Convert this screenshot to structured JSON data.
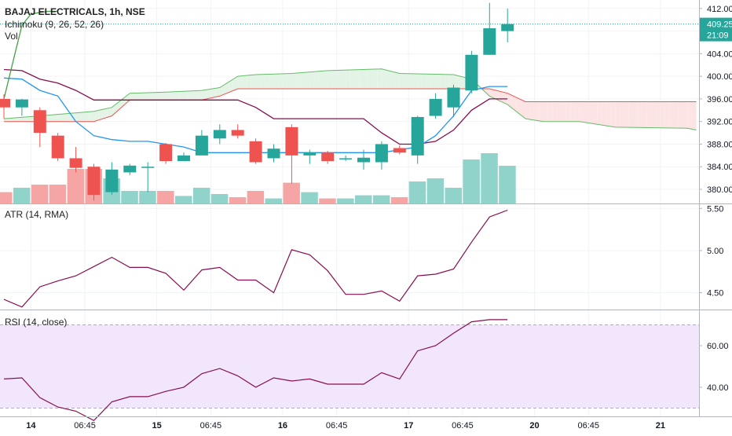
{
  "header": {
    "symbol_title": "BAJAJ ELECTRICALS, 1h, NSE",
    "ichimoku_label": "Ichimoku (9, 26, 52, 26)",
    "vol_label": "Vol",
    "atr_label": "ATR (14, RMA)",
    "rsi_label": "RSI (14, close)"
  },
  "price_badge": {
    "price": "409.25",
    "countdown": "21:09",
    "color": "#26a69a"
  },
  "colors": {
    "up": "#26a69a",
    "down": "#ef5350",
    "up_vol": "#8fd3cb",
    "down_vol": "#f5a6a4",
    "tenkan": "#2196f3",
    "kijun": "#880e4f",
    "lagging": "#43a047",
    "span_a": "#66bb6a",
    "span_b": "#ef5350",
    "cloud_up": "#e3f4e6",
    "cloud_down": "#fde4e4",
    "atr": "#880e4f",
    "rsi": "#880e4f",
    "rsi_band": "#f2e6fd",
    "rsi_band_line": "#9c27b0"
  },
  "x_axis": {
    "ticks": [
      {
        "i": 1.5,
        "label": "14"
      },
      {
        "i": 4.5,
        "label": "06:45"
      },
      {
        "i": 8.5,
        "label": "15"
      },
      {
        "i": 11.5,
        "label": "06:45"
      },
      {
        "i": 15.5,
        "label": "16"
      },
      {
        "i": 18.5,
        "label": "06:45"
      },
      {
        "i": 22.5,
        "label": "17"
      },
      {
        "i": 25.5,
        "label": "06:45"
      },
      {
        "i": 29.5,
        "label": "20"
      },
      {
        "i": 32.5,
        "label": "06:45"
      },
      {
        "i": 36.5,
        "label": "21"
      }
    ]
  },
  "chart_data": [
    {
      "type": "candlestick",
      "title": "BAJAJ ELECTRICALS, 1h, NSE",
      "ylim": [
        377.5,
        413.5
      ],
      "y_ticks": [
        412,
        408,
        404,
        400,
        396,
        392,
        388,
        384,
        380
      ],
      "price_line": 409.25,
      "candles": [
        {
          "o": 396.0,
          "h": 396.8,
          "l": 392.5,
          "c": 394.5
        },
        {
          "o": 394.5,
          "h": 396.0,
          "l": 393.0,
          "c": 395.9
        },
        {
          "o": 394.0,
          "h": 394.5,
          "l": 387.5,
          "c": 390.0
        },
        {
          "o": 389.5,
          "h": 390.0,
          "l": 385.0,
          "c": 385.5
        },
        {
          "o": 385.5,
          "h": 387.5,
          "l": 383.0,
          "c": 383.8
        },
        {
          "o": 384.0,
          "h": 384.5,
          "l": 378.0,
          "c": 379.0
        },
        {
          "o": 379.5,
          "h": 384.8,
          "l": 379.0,
          "c": 383.5
        },
        {
          "o": 383.0,
          "h": 384.5,
          "l": 382.5,
          "c": 384.2
        },
        {
          "o": 384.0,
          "h": 384.8,
          "l": 379.5,
          "c": 384.0
        },
        {
          "o": 388.0,
          "h": 388.2,
          "l": 384.5,
          "c": 385.0
        },
        {
          "o": 385.0,
          "h": 386.5,
          "l": 385.0,
          "c": 386.0
        },
        {
          "o": 386.0,
          "h": 390.5,
          "l": 386.0,
          "c": 389.5
        },
        {
          "o": 389.0,
          "h": 391.5,
          "l": 388.0,
          "c": 390.5
        },
        {
          "o": 390.5,
          "h": 391.5,
          "l": 389.0,
          "c": 389.5
        },
        {
          "o": 388.5,
          "h": 389.0,
          "l": 384.5,
          "c": 384.8
        },
        {
          "o": 385.5,
          "h": 388.0,
          "l": 384.8,
          "c": 387.2
        },
        {
          "o": 391.0,
          "h": 391.5,
          "l": 381.0,
          "c": 386.0
        },
        {
          "o": 386.0,
          "h": 387.0,
          "l": 384.5,
          "c": 386.5
        },
        {
          "o": 386.5,
          "h": 386.8,
          "l": 384.5,
          "c": 385.0
        },
        {
          "o": 385.5,
          "h": 386.0,
          "l": 385.0,
          "c": 385.5
        },
        {
          "o": 384.8,
          "h": 387.0,
          "l": 383.5,
          "c": 385.6
        },
        {
          "o": 384.8,
          "h": 388.5,
          "l": 383.5,
          "c": 388.0
        },
        {
          "o": 387.3,
          "h": 387.8,
          "l": 386.2,
          "c": 386.5
        },
        {
          "o": 386.0,
          "h": 393.0,
          "l": 384.5,
          "c": 392.8
        },
        {
          "o": 393.0,
          "h": 397.0,
          "l": 392.5,
          "c": 396.0
        },
        {
          "o": 394.5,
          "h": 398.5,
          "l": 392.8,
          "c": 398.0
        },
        {
          "o": 397.5,
          "h": 404.5,
          "l": 397.0,
          "c": 403.8
        },
        {
          "o": 403.8,
          "h": 413.0,
          "l": 403.8,
          "c": 408.5
        },
        {
          "o": 408.0,
          "h": 412.0,
          "l": 406.0,
          "c": 409.25
        }
      ],
      "volume_ratios": [
        0.18,
        0.25,
        0.3,
        0.3,
        0.55,
        0.55,
        0.4,
        0.2,
        0.2,
        0.2,
        0.12,
        0.25,
        0.15,
        0.1,
        0.2,
        0.08,
        0.33,
        0.18,
        0.08,
        0.08,
        0.13,
        0.13,
        0.1,
        0.35,
        0.4,
        0.25,
        0.7,
        0.8,
        0.6
      ],
      "series": [
        {
          "key": "tenkan",
          "values": [
            {
              "i": 0,
              "v": 399.7
            },
            {
              "i": 1,
              "v": 399.5
            },
            {
              "i": 2,
              "v": 397.5
            },
            {
              "i": 3,
              "v": 396.5
            },
            {
              "i": 4,
              "v": 392.0
            },
            {
              "i": 5,
              "v": 389.5
            },
            {
              "i": 6,
              "v": 388.8
            },
            {
              "i": 7,
              "v": 388.5
            },
            {
              "i": 8,
              "v": 388.5
            },
            {
              "i": 9,
              "v": 388.0
            },
            {
              "i": 10,
              "v": 387.5
            },
            {
              "i": 11,
              "v": 386.5
            },
            {
              "i": 12,
              "v": 386.5
            },
            {
              "i": 13,
              "v": 386.5
            },
            {
              "i": 14,
              "v": 386.5
            },
            {
              "i": 15,
              "v": 386.5
            },
            {
              "i": 16,
              "v": 386.5
            },
            {
              "i": 17,
              "v": 386.5
            },
            {
              "i": 18,
              "v": 386.5
            },
            {
              "i": 19,
              "v": 386.5
            },
            {
              "i": 20,
              "v": 386.5
            },
            {
              "i": 21,
              "v": 386.5
            },
            {
              "i": 22,
              "v": 387.0
            },
            {
              "i": 23,
              "v": 387.5
            },
            {
              "i": 24,
              "v": 389.5
            },
            {
              "i": 25,
              "v": 393.0
            },
            {
              "i": 26,
              "v": 397.5
            },
            {
              "i": 27,
              "v": 398.2
            },
            {
              "i": 28,
              "v": 398.2
            }
          ]
        },
        {
          "key": "kijun",
          "values": [
            {
              "i": 0,
              "v": 401.2
            },
            {
              "i": 1,
              "v": 401.0
            },
            {
              "i": 2,
              "v": 399.5
            },
            {
              "i": 3,
              "v": 398.8
            },
            {
              "i": 4,
              "v": 397.5
            },
            {
              "i": 5,
              "v": 395.8
            },
            {
              "i": 6,
              "v": 395.8
            },
            {
              "i": 7,
              "v": 395.8
            },
            {
              "i": 8,
              "v": 395.8
            },
            {
              "i": 9,
              "v": 395.8
            },
            {
              "i": 10,
              "v": 395.8
            },
            {
              "i": 11,
              "v": 395.8
            },
            {
              "i": 12,
              "v": 395.8
            },
            {
              "i": 13,
              "v": 395.8
            },
            {
              "i": 14,
              "v": 394.5
            },
            {
              "i": 15,
              "v": 392.5
            },
            {
              "i": 16,
              "v": 392.5
            },
            {
              "i": 17,
              "v": 392.5
            },
            {
              "i": 18,
              "v": 392.5
            },
            {
              "i": 19,
              "v": 392.5
            },
            {
              "i": 20,
              "v": 392.5
            },
            {
              "i": 21,
              "v": 390.0
            },
            {
              "i": 22,
              "v": 388.0
            },
            {
              "i": 23,
              "v": 388.0
            },
            {
              "i": 24,
              "v": 388.5
            },
            {
              "i": 25,
              "v": 390.5
            },
            {
              "i": 26,
              "v": 394.0
            },
            {
              "i": 27,
              "v": 396.0
            },
            {
              "i": 28,
              "v": 396.0
            }
          ]
        },
        {
          "key": "lagging",
          "values": [
            {
              "i": -0.5,
              "v": 393.0
            },
            {
              "i": 0,
              "v": 396.0
            },
            {
              "i": 0.5,
              "v": 402.5
            },
            {
              "i": 1,
              "v": 409.0
            },
            {
              "i": 1.5,
              "v": 411.0
            },
            {
              "i": 2,
              "v": 411.3
            },
            {
              "i": 2.5,
              "v": 411.5
            },
            {
              "i": 3,
              "v": 411.5
            }
          ]
        },
        {
          "key": "span_a",
          "values": [
            {
              "i": 0,
              "v": 392.5
            },
            {
              "i": 2,
              "v": 393.0
            },
            {
              "i": 5,
              "v": 393.8
            },
            {
              "i": 6,
              "v": 394.5
            },
            {
              "i": 7,
              "v": 397.0
            },
            {
              "i": 9,
              "v": 397.2
            },
            {
              "i": 11,
              "v": 397.5
            },
            {
              "i": 12,
              "v": 398.0
            },
            {
              "i": 13,
              "v": 400.0
            },
            {
              "i": 14,
              "v": 400.3
            },
            {
              "i": 16,
              "v": 400.5
            },
            {
              "i": 18,
              "v": 401.0
            },
            {
              "i": 21,
              "v": 401.3
            },
            {
              "i": 22,
              "v": 400.5
            },
            {
              "i": 25,
              "v": 400.3
            },
            {
              "i": 26,
              "v": 399.5
            },
            {
              "i": 27,
              "v": 396.5
            },
            {
              "i": 28,
              "v": 395.0
            },
            {
              "i": 29,
              "v": 392.5
            },
            {
              "i": 30,
              "v": 392.0
            },
            {
              "i": 32,
              "v": 392.0
            },
            {
              "i": 34,
              "v": 391.0
            },
            {
              "i": 38,
              "v": 390.8
            },
            {
              "i": 38.5,
              "v": 390.5
            }
          ]
        },
        {
          "key": "span_b",
          "values": [
            {
              "i": 0,
              "v": 392.0
            },
            {
              "i": 2,
              "v": 392.0
            },
            {
              "i": 5,
              "v": 392.0
            },
            {
              "i": 6,
              "v": 393.0
            },
            {
              "i": 7,
              "v": 395.8
            },
            {
              "i": 11,
              "v": 395.8
            },
            {
              "i": 12,
              "v": 396.5
            },
            {
              "i": 13,
              "v": 397.8
            },
            {
              "i": 22,
              "v": 397.8
            },
            {
              "i": 26,
              "v": 397.8
            },
            {
              "i": 27,
              "v": 397.8
            },
            {
              "i": 28,
              "v": 397.0
            },
            {
              "i": 29,
              "v": 395.5
            },
            {
              "i": 38.5,
              "v": 395.5
            }
          ]
        }
      ]
    },
    {
      "type": "line",
      "title": "ATR (14, RMA)",
      "ylim": [
        4.3,
        5.55
      ],
      "y_ticks": [
        5.5,
        5.0,
        4.5
      ],
      "y_tick_labels": [
        "5.50",
        "5.00",
        "4.50"
      ],
      "values": [
        4.42,
        4.33,
        4.57,
        4.64,
        4.7,
        4.81,
        4.92,
        4.8,
        4.8,
        4.73,
        4.53,
        4.77,
        4.8,
        4.65,
        4.65,
        4.5,
        5.01,
        4.95,
        4.76,
        4.48,
        4.48,
        4.52,
        4.4,
        4.7,
        4.72,
        4.78,
        5.1,
        5.4,
        5.48
      ]
    },
    {
      "type": "line",
      "title": "RSI (14, close)",
      "ylim": [
        26,
        77
      ],
      "y_ticks": [
        60,
        40
      ],
      "y_tick_labels": [
        "60.00",
        "40.00"
      ],
      "band": [
        30,
        70
      ],
      "values": [
        44,
        44.5,
        35,
        30.5,
        28.5,
        24,
        33,
        35.5,
        35.5,
        38,
        40,
        46.5,
        49,
        45.5,
        40,
        44.5,
        43,
        44,
        41.5,
        41.5,
        41.5,
        47,
        44,
        57.5,
        60,
        66,
        71.5,
        72.5,
        72.5
      ]
    }
  ]
}
